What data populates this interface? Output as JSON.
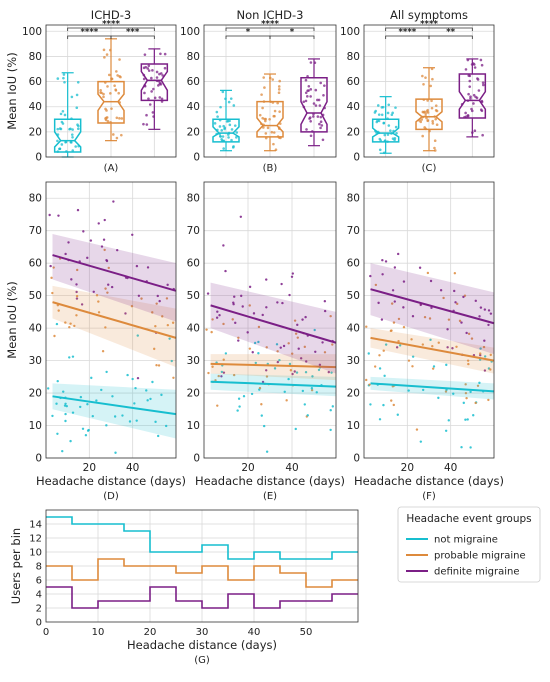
{
  "figure": {
    "colors": {
      "not_migraine": "#17becf",
      "probable_migraine": "#dd8a3c",
      "definite_migraine": "#7b1f86",
      "grid": "#d9d9d9",
      "text": "#222222"
    }
  },
  "legend": {
    "title": "Headache event groups",
    "placement": "lower-right",
    "items": [
      {
        "label": "not migraine",
        "color": "#17becf"
      },
      {
        "label": "probable migraine",
        "color": "#dd8a3c"
      },
      {
        "label": "definite migraine",
        "color": "#7b1f86"
      }
    ]
  },
  "chart_data": [
    {
      "type": "box",
      "panel": "(A)",
      "title": "ICHD-3",
      "ylabel": "Mean IoU (%)",
      "ylim": [
        0,
        105
      ],
      "yticks": [
        0,
        20,
        40,
        60,
        80,
        100
      ],
      "grid": true,
      "series": [
        {
          "group": "not migraine",
          "whislo": 0,
          "q1": 4,
          "med": 13,
          "q3": 30,
          "whishi": 67,
          "notch": [
            8,
            20
          ]
        },
        {
          "group": "probable migraine",
          "whislo": 13,
          "q1": 27,
          "med": 44,
          "q3": 60,
          "whishi": 94,
          "notch": [
            37,
            50
          ]
        },
        {
          "group": "definite migraine",
          "whislo": 22,
          "q1": 45,
          "med": 61,
          "q3": 74,
          "whishi": 86,
          "notch": [
            53,
            68
          ]
        }
      ],
      "significance": [
        {
          "pair": [
            1,
            3
          ],
          "label": "****"
        },
        {
          "pair": [
            1,
            2
          ],
          "label": "****"
        },
        {
          "pair": [
            2,
            3
          ],
          "label": "***"
        }
      ]
    },
    {
      "type": "box",
      "panel": "(B)",
      "title": "Non ICHD-3",
      "ylabel": "",
      "ylim": [
        0,
        105
      ],
      "yticks": [
        0,
        20,
        40,
        60,
        80,
        100
      ],
      "grid": true,
      "series": [
        {
          "group": "not migraine",
          "whislo": 5,
          "q1": 12,
          "med": 19,
          "q3": 30,
          "whishi": 53,
          "notch": [
            16,
            24
          ]
        },
        {
          "group": "probable migraine",
          "whislo": 5,
          "q1": 16,
          "med": 25,
          "q3": 44,
          "whishi": 66,
          "notch": [
            20,
            31
          ]
        },
        {
          "group": "definite migraine",
          "whislo": 9,
          "q1": 20,
          "med": 35,
          "q3": 63,
          "whishi": 78,
          "notch": [
            26,
            44
          ]
        }
      ],
      "significance": [
        {
          "pair": [
            1,
            3
          ],
          "label": "****"
        },
        {
          "pair": [
            1,
            2
          ],
          "label": "*"
        },
        {
          "pair": [
            2,
            3
          ],
          "label": "*"
        }
      ]
    },
    {
      "type": "box",
      "panel": "(C)",
      "title": "All symptoms",
      "ylabel": "",
      "ylim": [
        0,
        105
      ],
      "yticks": [
        0,
        20,
        40,
        60,
        80,
        100
      ],
      "grid": true,
      "series": [
        {
          "group": "not migraine",
          "whislo": 3,
          "q1": 12,
          "med": 19,
          "q3": 30,
          "whishi": 48,
          "notch": [
            16,
            23
          ]
        },
        {
          "group": "probable migraine",
          "whislo": 5,
          "q1": 22,
          "med": 32,
          "q3": 46,
          "whishi": 71,
          "notch": [
            28,
            36
          ]
        },
        {
          "group": "definite migraine",
          "whislo": 16,
          "q1": 31,
          "med": 45,
          "q3": 66,
          "whishi": 78,
          "notch": [
            38,
            52
          ]
        }
      ],
      "significance": [
        {
          "pair": [
            1,
            3
          ],
          "label": "****"
        },
        {
          "pair": [
            1,
            2
          ],
          "label": "****"
        },
        {
          "pair": [
            2,
            3
          ],
          "label": "**"
        }
      ]
    },
    {
      "type": "scatter",
      "panel": "(D)",
      "xlabel": "Headache distance (days)",
      "ylabel": "Mean IoU (%)",
      "xlim": [
        0,
        60
      ],
      "ylim": [
        0,
        85
      ],
      "xticks": [
        20,
        40
      ],
      "yticks": [
        0,
        10,
        20,
        30,
        40,
        50,
        60,
        70,
        80
      ],
      "grid": true,
      "regression": [
        {
          "group": "not migraine",
          "x": [
            3,
            60
          ],
          "y": [
            19,
            13.5
          ],
          "band": [
            [
              15,
              23
            ],
            [
              6,
              21
            ]
          ]
        },
        {
          "group": "probable migraine",
          "x": [
            3,
            60
          ],
          "y": [
            48,
            37
          ],
          "band": [
            [
              43,
              53
            ],
            [
              28,
              46
            ]
          ]
        },
        {
          "group": "definite migraine",
          "x": [
            3,
            60
          ],
          "y": [
            62.5,
            51.5
          ],
          "band": [
            [
              55,
              69
            ],
            [
              42,
              60
            ]
          ]
        }
      ]
    },
    {
      "type": "scatter",
      "panel": "(E)",
      "xlabel": "Headache distance (days)",
      "ylabel": "",
      "xlim": [
        0,
        60
      ],
      "ylim": [
        0,
        85
      ],
      "xticks": [
        20,
        40
      ],
      "yticks": [
        0,
        10,
        20,
        30,
        40,
        50,
        60,
        70,
        80
      ],
      "grid": true,
      "regression": [
        {
          "group": "not migraine",
          "x": [
            3,
            60
          ],
          "y": [
            23.5,
            22
          ],
          "band": [
            [
              21,
              26
            ],
            [
              19,
              25
            ]
          ]
        },
        {
          "group": "probable migraine",
          "x": [
            3,
            60
          ],
          "y": [
            29,
            28
          ],
          "band": [
            [
              26,
              32
            ],
            [
              24,
              32
            ]
          ]
        },
        {
          "group": "definite migraine",
          "x": [
            3,
            60
          ],
          "y": [
            47,
            35.5
          ],
          "band": [
            [
              40,
              54
            ],
            [
              26,
              45
            ]
          ]
        }
      ]
    },
    {
      "type": "scatter",
      "panel": "(F)",
      "xlabel": "Headache distance (days)",
      "ylabel": "",
      "xlim": [
        0,
        60
      ],
      "ylim": [
        0,
        85
      ],
      "xticks": [
        20,
        40
      ],
      "yticks": [
        0,
        10,
        20,
        30,
        40,
        50,
        60,
        70,
        80
      ],
      "grid": true,
      "regression": [
        {
          "group": "not migraine",
          "x": [
            3,
            60
          ],
          "y": [
            23,
            20.5
          ],
          "band": [
            [
              21,
              25
            ],
            [
              18,
              23
            ]
          ]
        },
        {
          "group": "probable migraine",
          "x": [
            3,
            60
          ],
          "y": [
            37,
            30
          ],
          "band": [
            [
              34,
              40
            ],
            [
              26,
              34
            ]
          ]
        },
        {
          "group": "definite migraine",
          "x": [
            3,
            60
          ],
          "y": [
            52,
            41.5
          ],
          "band": [
            [
              44,
              60
            ],
            [
              32,
              51
            ]
          ]
        }
      ]
    },
    {
      "type": "line",
      "panel": "(G)",
      "step": true,
      "xlabel": "Headache distance (days)",
      "ylabel": "Users per bin",
      "xlim": [
        0,
        60
      ],
      "ylim": [
        0,
        16
      ],
      "xticks": [
        0,
        10,
        20,
        30,
        40,
        50
      ],
      "yticks": [
        0,
        2,
        4,
        6,
        8,
        10,
        12,
        14
      ],
      "grid": true,
      "bin_edges": [
        0,
        5,
        10,
        15,
        20,
        25,
        30,
        35,
        40,
        45,
        50,
        55,
        60
      ],
      "series": [
        {
          "name": "not migraine",
          "values": [
            15,
            14,
            14,
            13,
            10,
            10,
            11,
            9,
            10,
            9,
            9,
            10
          ]
        },
        {
          "name": "probable migraine",
          "values": [
            8,
            6,
            9,
            8,
            8,
            7,
            8,
            6,
            8,
            7,
            5,
            6
          ]
        },
        {
          "name": "definite migraine",
          "values": [
            5,
            2,
            3,
            3,
            5,
            3,
            2,
            4,
            2,
            3,
            3,
            4
          ]
        }
      ]
    }
  ]
}
